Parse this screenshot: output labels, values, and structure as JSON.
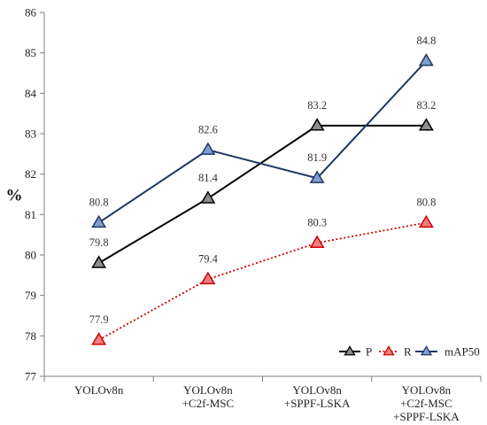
{
  "chart_data": {
    "type": "line",
    "categories": [
      [
        "YOLOv8n"
      ],
      [
        "YOLOv8n",
        "+C2f-MSC"
      ],
      [
        "YOLOv8n",
        "+SPPF-LSKA"
      ],
      [
        "YOLOv8n",
        "+C2f-MSC",
        "+SPPF-LSKA"
      ]
    ],
    "ylabel": "%",
    "ylim": [
      77,
      86
    ],
    "yticks": [
      77,
      78,
      79,
      80,
      81,
      82,
      83,
      84,
      85,
      86
    ],
    "grid": false,
    "legend_position": "bottom-right",
    "series": [
      {
        "name": "P",
        "values": [
          79.8,
          81.4,
          83.2,
          83.2
        ],
        "labels": [
          "79.8",
          "81.4",
          "83.2",
          "83.2"
        ],
        "line_color": "#000000",
        "marker_fill": "#8c8c8c",
        "line_style": "solid"
      },
      {
        "name": "R",
        "values": [
          77.9,
          79.4,
          80.3,
          80.8
        ],
        "labels": [
          "77.9",
          "79.4",
          "80.3",
          "80.8"
        ],
        "line_color": "#cc0000",
        "marker_fill": "#f08080",
        "line_style": "dotted"
      },
      {
        "name": "mAP50",
        "values": [
          80.8,
          82.6,
          81.9,
          84.8
        ],
        "labels": [
          "80.8",
          "82.6",
          "81.9",
          "84.8"
        ],
        "line_color": "#1f3864",
        "marker_fill": "#7f9fd0",
        "line_style": "solid"
      }
    ]
  }
}
